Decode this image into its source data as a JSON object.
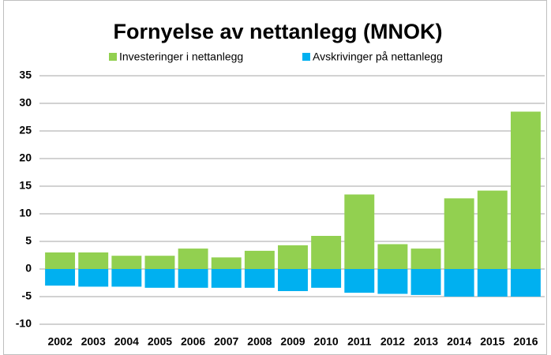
{
  "chart_data": {
    "type": "bar",
    "title": "Fornyelse av nettanlegg (MNOK)",
    "categories": [
      "2002",
      "2003",
      "2004",
      "2005",
      "2006",
      "2007",
      "2008",
      "2009",
      "2010",
      "2011",
      "2012",
      "2013",
      "2014",
      "2015",
      "2016"
    ],
    "series": [
      {
        "name": "Investeringer i nettanlegg",
        "color": "#92d050",
        "values": [
          3.0,
          3.0,
          2.4,
          2.4,
          3.7,
          2.1,
          3.3,
          4.3,
          6.0,
          13.5,
          4.5,
          3.7,
          12.8,
          14.2,
          28.5
        ]
      },
      {
        "name": "Avskrivinger på nettanlegg",
        "color": "#00b0f0",
        "values": [
          -3.0,
          -3.2,
          -3.2,
          -3.4,
          -3.4,
          -3.4,
          -3.4,
          -4.0,
          -3.4,
          -4.3,
          -4.5,
          -4.7,
          -5.0,
          -5.0,
          -5.0
        ]
      }
    ],
    "ylim": [
      -10,
      35
    ],
    "yticks": [
      -10,
      -5,
      0,
      5,
      10,
      15,
      20,
      25,
      30,
      35
    ],
    "grid": true,
    "legend": "top"
  }
}
